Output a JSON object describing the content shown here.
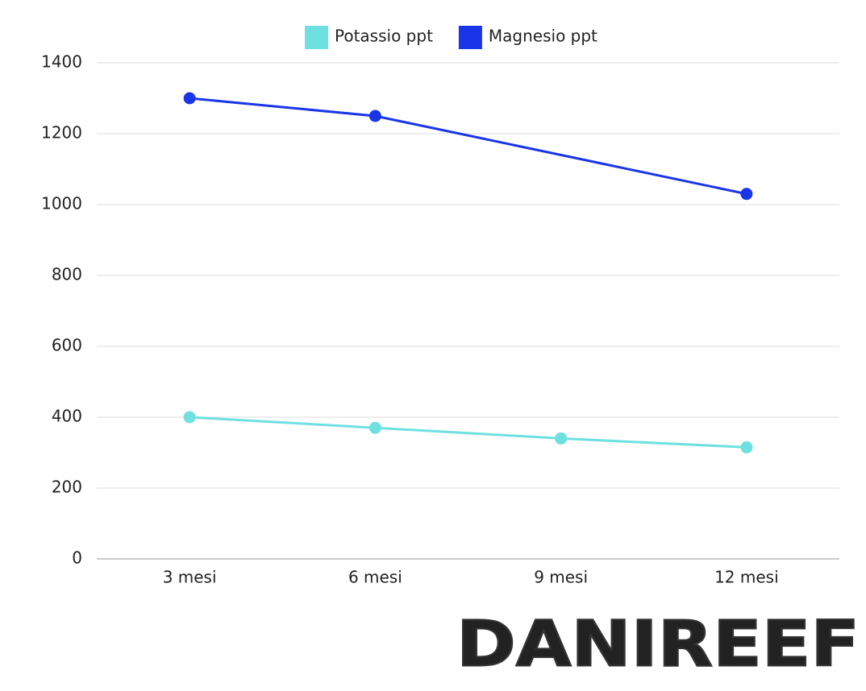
{
  "chart_data": {
    "type": "line",
    "categories": [
      "3 mesi",
      "6 mesi",
      "9 mesi",
      "12 mesi"
    ],
    "series": [
      {
        "name": "Potassio ppt",
        "color": "#6ee0e0",
        "values": [
          400,
          370,
          340,
          315
        ]
      },
      {
        "name": "Magnesio ppt",
        "color": "#1a35e8",
        "values": [
          1300,
          1250,
          null,
          1030
        ]
      }
    ],
    "ylim": [
      0,
      1400
    ],
    "yticks": [
      0,
      200,
      400,
      600,
      800,
      1000,
      1200,
      1400
    ],
    "grid": true,
    "legend": "top"
  },
  "logo": "DANIREEF"
}
